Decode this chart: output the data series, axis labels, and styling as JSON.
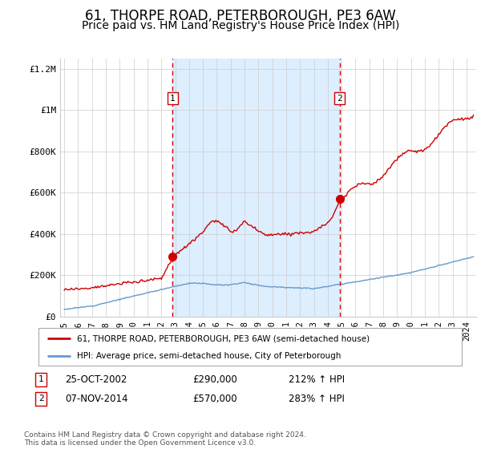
{
  "title": "61, THORPE ROAD, PETERBOROUGH, PE3 6AW",
  "subtitle": "Price paid vs. HM Land Registry's House Price Index (HPI)",
  "title_fontsize": 12,
  "subtitle_fontsize": 10,
  "bg_color": "#ffffff",
  "plot_bg_color": "#ffffff",
  "grid_color": "#cccccc",
  "shaded_region_color": "#ddeeff",
  "shaded_x_start": 2002.82,
  "shaded_x_end": 2014.85,
  "red_line_color": "#cc0000",
  "blue_line_color": "#6699cc",
  "marker1_x": 2002.82,
  "marker1_y": 290000,
  "marker2_x": 2014.85,
  "marker2_y": 570000,
  "marker_color": "#cc0000",
  "vline_color": "#cc0000",
  "ylim": [
    0,
    1250000
  ],
  "xlim_start": 1994.7,
  "xlim_end": 2024.7,
  "yticks": [
    0,
    200000,
    400000,
    600000,
    800000,
    1000000,
    1200000
  ],
  "ytick_labels": [
    "£0",
    "£200K",
    "£400K",
    "£600K",
    "£800K",
    "£1M",
    "£1.2M"
  ],
  "xticks": [
    1995,
    1996,
    1997,
    1998,
    1999,
    2000,
    2001,
    2002,
    2003,
    2004,
    2005,
    2006,
    2007,
    2008,
    2009,
    2010,
    2011,
    2012,
    2013,
    2014,
    2015,
    2016,
    2017,
    2018,
    2019,
    2020,
    2021,
    2022,
    2023,
    2024
  ],
  "legend_red": "61, THORPE ROAD, PETERBOROUGH, PE3 6AW (semi-detached house)",
  "legend_blue": "HPI: Average price, semi-detached house, City of Peterborough",
  "annotation1_label": "1",
  "annotation2_label": "2",
  "table_row1": [
    "1",
    "25-OCT-2002",
    "£290,000",
    "212% ↑ HPI"
  ],
  "table_row2": [
    "2",
    "07-NOV-2014",
    "£570,000",
    "283% ↑ HPI"
  ],
  "footer": "Contains HM Land Registry data © Crown copyright and database right 2024.\nThis data is licensed under the Open Government Licence v3.0."
}
